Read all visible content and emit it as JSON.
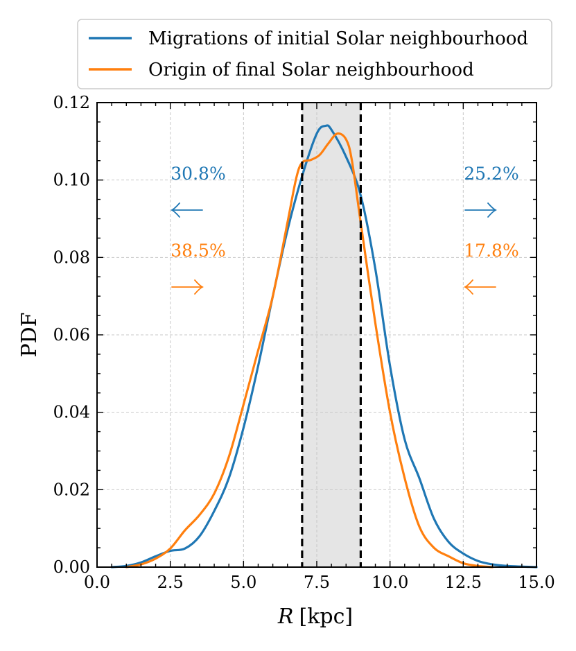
{
  "chart_data": {
    "type": "line",
    "title": "",
    "xlabel": "R [kpc]",
    "xlabel_var": "R",
    "xlabel_unit": "[kpc]",
    "ylabel": "PDF",
    "xlim": [
      0.0,
      15.0
    ],
    "ylim": [
      0.0,
      0.12
    ],
    "x_ticks": [
      "0.0",
      "2.5",
      "5.0",
      "7.5",
      "10.0",
      "12.5",
      "15.0"
    ],
    "y_ticks": [
      "0.00",
      "0.02",
      "0.04",
      "0.06",
      "0.08",
      "0.10",
      "0.12"
    ],
    "grid": true,
    "legend_position": "top",
    "shaded_region": [
      7.0,
      9.0
    ],
    "vertical_lines": [
      7.0,
      9.0
    ],
    "colors": {
      "blue": "#1f77b4",
      "orange": "#ff7f0e",
      "shade": "#e5e5e5"
    },
    "series": [
      {
        "name": "Migrations of initial Solar neighbourhood",
        "color": "#1f77b4",
        "x": [
          0.5,
          1.0,
          1.5,
          2.0,
          2.5,
          3.0,
          3.5,
          4.0,
          4.5,
          5.0,
          5.5,
          6.0,
          6.5,
          7.0,
          7.5,
          7.8,
          8.0,
          8.5,
          9.0,
          9.5,
          10.0,
          10.5,
          11.0,
          11.5,
          12.0,
          12.5,
          13.0,
          13.5,
          14.0,
          15.0
        ],
        "y": [
          0.0,
          0.0003,
          0.0012,
          0.0028,
          0.0042,
          0.0048,
          0.008,
          0.0145,
          0.023,
          0.036,
          0.052,
          0.07,
          0.087,
          0.101,
          0.112,
          0.114,
          0.113,
          0.106,
          0.096,
          0.077,
          0.052,
          0.033,
          0.023,
          0.0125,
          0.0065,
          0.0035,
          0.0016,
          0.0007,
          0.0003,
          0.0
        ]
      },
      {
        "name": "Origin of final Solar neighbourhood",
        "color": "#ff7f0e",
        "x": [
          1.0,
          1.5,
          2.0,
          2.5,
          3.0,
          3.5,
          4.0,
          4.5,
          5.0,
          5.5,
          6.0,
          6.5,
          6.8,
          7.0,
          7.3,
          7.6,
          7.9,
          8.2,
          8.5,
          8.7,
          9.0,
          9.5,
          10.0,
          10.5,
          11.0,
          11.5,
          12.0,
          12.5,
          13.0,
          13.5
        ],
        "y": [
          0.0,
          0.0007,
          0.0022,
          0.0048,
          0.0095,
          0.0135,
          0.019,
          0.0285,
          0.042,
          0.056,
          0.07,
          0.089,
          0.1005,
          0.1045,
          0.1052,
          0.1065,
          0.1095,
          0.112,
          0.1105,
          0.105,
          0.089,
          0.063,
          0.04,
          0.023,
          0.0105,
          0.005,
          0.0028,
          0.001,
          0.0003,
          0.0
        ]
      }
    ],
    "annotations": [
      {
        "text": "30.8%",
        "arrow": "←",
        "color": "#1f77b4",
        "side": "left",
        "row": "top"
      },
      {
        "text": "38.5%",
        "arrow": "→",
        "color": "#ff7f0e",
        "side": "left",
        "row": "bottom"
      },
      {
        "text": "25.2%",
        "arrow": "→",
        "color": "#1f77b4",
        "side": "right",
        "row": "top"
      },
      {
        "text": "17.8%",
        "arrow": "←",
        "color": "#ff7f0e",
        "side": "right",
        "row": "bottom"
      }
    ]
  }
}
